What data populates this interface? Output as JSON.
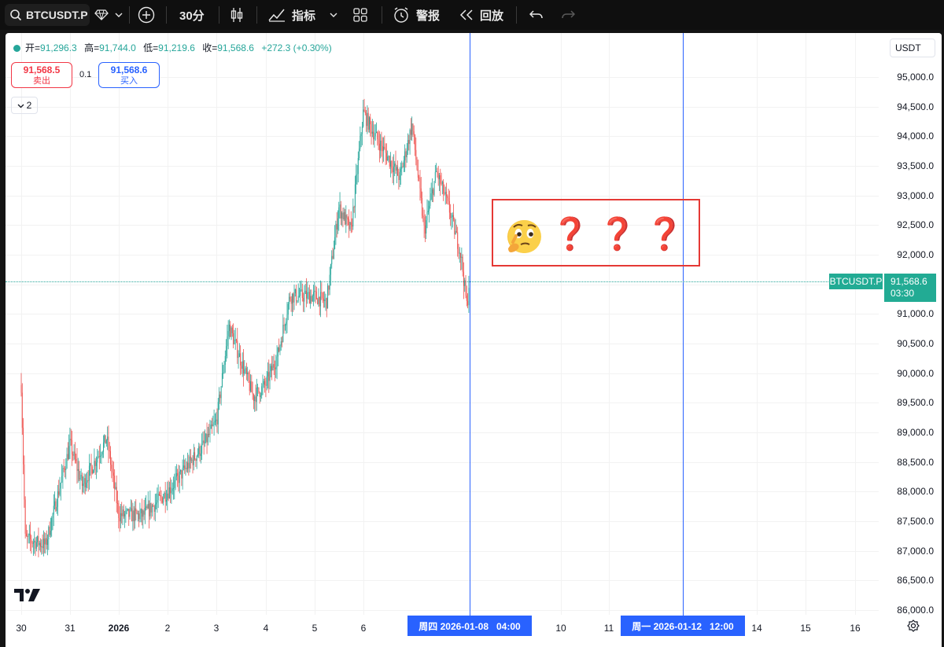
{
  "toolbar": {
    "symbol": "BTCUSDT.P",
    "interval": "30分",
    "indicators": "指标",
    "alert": "警报",
    "replay": "回放"
  },
  "legend": {
    "open_key": "开=",
    "open": "91,296.3",
    "high_key": "高=",
    "high": "91,744.0",
    "low_key": "低=",
    "low": "91,219.6",
    "close_key": "收=",
    "close": "91,568.6",
    "change": "+272.3 (+0.30%)"
  },
  "trade": {
    "sell_price": "91,568.5",
    "sell_label": "卖出",
    "quantity": "0.1",
    "buy_price": "91,568.6",
    "buy_label": "买入"
  },
  "indicator_count": "2",
  "currency": "USDT",
  "price_label": {
    "symbol": "BTCUSDT.P",
    "price": "91,568.6",
    "countdown": "03:30"
  },
  "cursor_labels": {
    "first": "周四 2026-01-08   04:00",
    "second": "周一 2026-01-12   12:00"
  },
  "annotation": {
    "emoji": "thinking-face-emoji",
    "marks": [
      "❓",
      "❓",
      "❓"
    ]
  },
  "colors": {
    "up": "#26a69a",
    "down": "#ef5350",
    "accent": "#2962ff",
    "annotation_border": "#e53935"
  },
  "chart_data": {
    "type": "candlestick",
    "symbol": "BTCUSDT.P",
    "interval": "30m",
    "y_ticks": [
      "95,000.0",
      "94,500.0",
      "94,000.0",
      "93,500.0",
      "93,000.0",
      "92,500.0",
      "92,000.0",
      "91,500.0",
      "91,000.0",
      "90,500.0",
      "90,000.0",
      "89,500.0",
      "89,000.0",
      "88,500.0",
      "88,000.0",
      "87,500.0",
      "87,000.0",
      "86,500.0",
      "86,000.0"
    ],
    "ylim": [
      86000,
      95600
    ],
    "x_ticks": [
      "30",
      "31",
      "2026",
      "2",
      "3",
      "4",
      "5",
      "6",
      "10",
      "11",
      "14",
      "15",
      "16"
    ],
    "last_price": 91568.6,
    "price_path_approx": [
      {
        "x": "12-30 00:00",
        "y": 89800
      },
      {
        "x": "12-30 02:00",
        "y": 87200
      },
      {
        "x": "12-30 12:00",
        "y": 87100
      },
      {
        "x": "12-31 00:00",
        "y": 88800
      },
      {
        "x": "12-31 06:00",
        "y": 88100
      },
      {
        "x": "12-31 18:00",
        "y": 88900
      },
      {
        "x": "01-01 00:00",
        "y": 87600
      },
      {
        "x": "01-01 12:00",
        "y": 87600
      },
      {
        "x": "01-02 00:00",
        "y": 88000
      },
      {
        "x": "01-02 18:00",
        "y": 88800
      },
      {
        "x": "01-03 00:00",
        "y": 89200
      },
      {
        "x": "01-03 06:00",
        "y": 90800
      },
      {
        "x": "01-03 18:00",
        "y": 89600
      },
      {
        "x": "01-04 00:00",
        "y": 89800
      },
      {
        "x": "01-04 06:00",
        "y": 90300
      },
      {
        "x": "01-04 12:00",
        "y": 91300
      },
      {
        "x": "01-05 00:00",
        "y": 91300
      },
      {
        "x": "01-05 06:00",
        "y": 91200
      },
      {
        "x": "01-05 12:00",
        "y": 92800
      },
      {
        "x": "01-05 18:00",
        "y": 92400
      },
      {
        "x": "01-06 00:00",
        "y": 94400
      },
      {
        "x": "01-06 06:00",
        "y": 94000
      },
      {
        "x": "01-06 18:00",
        "y": 93300
      },
      {
        "x": "01-07 00:00",
        "y": 94200
      },
      {
        "x": "01-07 06:00",
        "y": 92400
      },
      {
        "x": "01-07 12:00",
        "y": 93400
      },
      {
        "x": "01-07 18:00",
        "y": 92800
      },
      {
        "x": "01-08 00:00",
        "y": 92000
      },
      {
        "x": "01-08 03:00",
        "y": 91100
      },
      {
        "x": "01-08 04:00",
        "y": 91568.6
      }
    ]
  }
}
